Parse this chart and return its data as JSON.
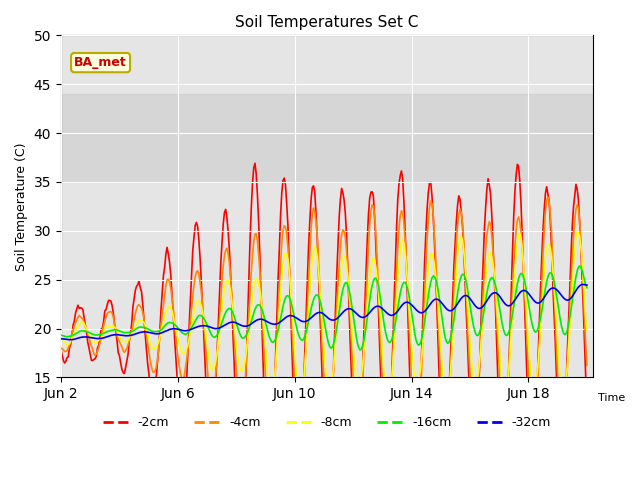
{
  "title": "Soil Temperatures Set C",
  "xlabel": "Time",
  "ylabel": "Soil Temperature (C)",
  "ylim": [
    15,
    50
  ],
  "annotation": "BA_met",
  "annotation_color": "#cc0000",
  "annotation_bg": "#ffffdd",
  "series": [
    {
      "label": "-2cm",
      "color": "#ff0000",
      "lw": 1.2
    },
    {
      "label": "-4cm",
      "color": "#ff8800",
      "lw": 1.2
    },
    {
      "label": "-8cm",
      "color": "#ffff00",
      "lw": 1.2
    },
    {
      "label": "-16cm",
      "color": "#00ee00",
      "lw": 1.2
    },
    {
      "label": "-32cm",
      "color": "#0000ee",
      "lw": 1.2
    }
  ],
  "xtick_positions": [
    2,
    6,
    10,
    14,
    18
  ],
  "xtick_labels": [
    "Jun 2",
    "Jun 6",
    "Jun 10",
    "Jun 14",
    "Jun 18"
  ],
  "ytick_positions": [
    15,
    20,
    25,
    30,
    35,
    40,
    45,
    50
  ],
  "shadeband_lo": 35,
  "shadeband_hi": 44,
  "figsize": [
    6.4,
    4.8
  ],
  "dpi": 100
}
